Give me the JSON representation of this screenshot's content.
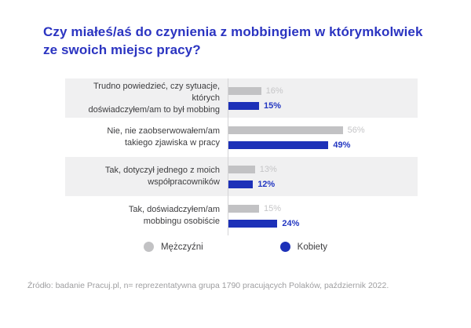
{
  "title": "Czy miałeś/aś do czynienia z mobbingiem w którymkolwiek\nze swoich miejsc pracy?",
  "chart_data": {
    "type": "bar",
    "orientation": "horizontal",
    "unit": "%",
    "categories": [
      "Trudno powiedzieć, czy sytuacje, których\ndoświadczyłem/am to był mobbing",
      "Nie, nie zaobserwowałem/am\ntakiego zjawiska w pracy",
      "Tak, dotyczył jednego z moich\nwspółpracowników",
      "Tak, doświadczyłem/am\nmobbingu osobiście"
    ],
    "series": [
      {
        "name": "Mężczyźni",
        "color": "#c2c2c4",
        "value_label_color": "#c5c5c7",
        "values": [
          16,
          56,
          13,
          15
        ]
      },
      {
        "name": "Kobiety",
        "color": "#1d31b8",
        "value_label_color": "#2337c2",
        "values": [
          15,
          49,
          12,
          24
        ]
      }
    ],
    "xlim": [
      0,
      60
    ],
    "grid": false,
    "legend_position": "bottom",
    "value_labels": "outside-end",
    "banded_rows": [
      0,
      2
    ]
  },
  "source": "Źródło: badanie Pracuj.pl, n= reprezentatywna grupa 1790 pracujących Polaków, październik 2022.",
  "colors": {
    "background": "#ffffff",
    "title": "#2b34c1",
    "row_band": "#f0f0f1",
    "axis_line": "#d4d4d6",
    "category_text": "#3d3d3f",
    "source_text": "#9e9ea0"
  }
}
